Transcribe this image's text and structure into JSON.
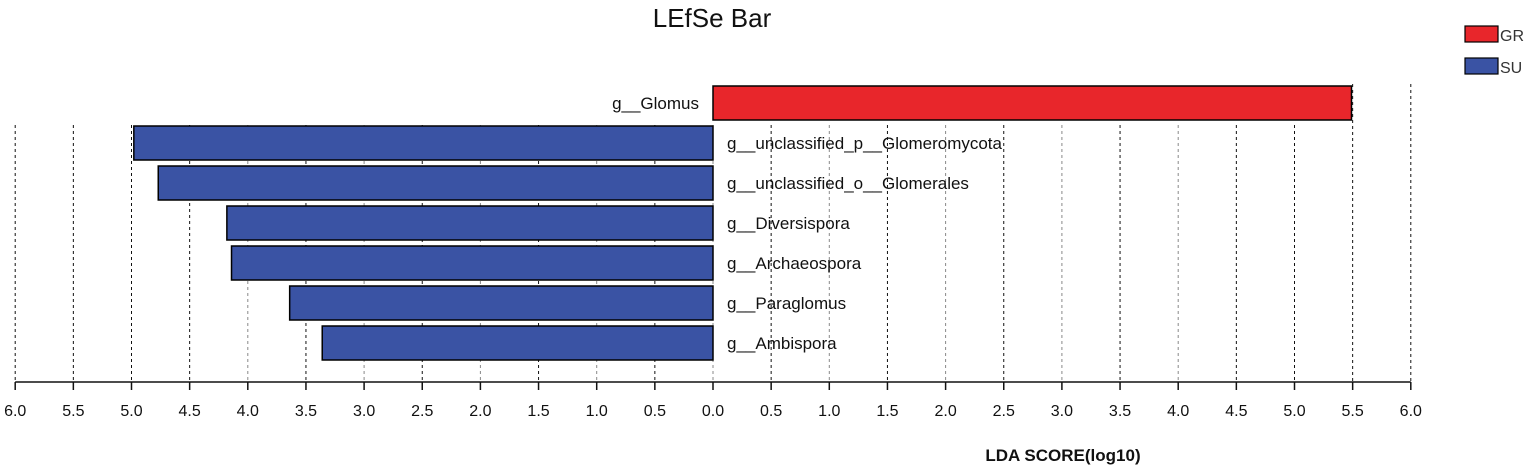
{
  "chart_data": {
    "type": "bar",
    "title": "LEfSe Bar",
    "xlabel": "LDA SCORE(log10)",
    "xlim": [
      -6,
      6
    ],
    "x_ticks": [
      "6.0",
      "5.5",
      "5.0",
      "4.5",
      "4.0",
      "3.5",
      "3.0",
      "2.5",
      "2.0",
      "1.5",
      "1.0",
      "0.5",
      "0.0",
      "0.5",
      "1.0",
      "1.5",
      "2.0",
      "2.5",
      "3.0",
      "3.5",
      "4.0",
      "4.5",
      "5.0",
      "5.5",
      "6.0"
    ],
    "legend_position": "top-right",
    "series": [
      {
        "name": "GR",
        "color": "#e8262b"
      },
      {
        "name": "SU",
        "color": "#3a53a4"
      }
    ],
    "categories": [
      "g__Glomus",
      "g__unclassified_p__Glomeromycota",
      "g__unclassified_o__Glomerales",
      "g__Diversispora",
      "g__Archaeospora",
      "g__Paraglomus",
      "g__Ambispora"
    ],
    "bars": [
      {
        "label": "g__Glomus",
        "group": "GR",
        "value": 5.49
      },
      {
        "label": "g__unclassified_p__Glomeromycota",
        "group": "SU",
        "value": 4.98
      },
      {
        "label": "g__unclassified_o__Glomerales",
        "group": "SU",
        "value": 4.77
      },
      {
        "label": "g__Diversispora",
        "group": "SU",
        "value": 4.18
      },
      {
        "label": "g__Archaeospora",
        "group": "SU",
        "value": 4.14
      },
      {
        "label": "g__Paraglomus",
        "group": "SU",
        "value": 3.64
      },
      {
        "label": "g__Ambispora",
        "group": "SU",
        "value": 3.36
      }
    ],
    "grid": true
  }
}
